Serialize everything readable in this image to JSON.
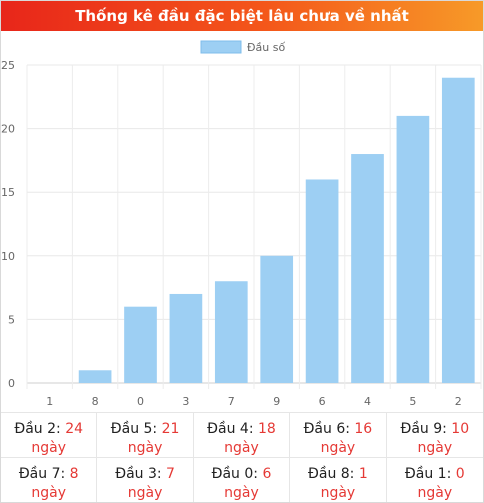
{
  "header": {
    "title": "Thống kê đầu đặc biệt lâu chưa về nhất"
  },
  "colors": {
    "bar": "#9dcff3",
    "bar_border": "#7fbdeb",
    "accent": "#e53935"
  },
  "chart_data": {
    "type": "bar",
    "categories": [
      "1",
      "8",
      "0",
      "3",
      "7",
      "9",
      "6",
      "4",
      "5",
      "2"
    ],
    "series": [
      {
        "name": "Đầu số",
        "values": [
          0,
          1,
          6,
          7,
          8,
          10,
          16,
          18,
          21,
          24
        ]
      }
    ],
    "ylim": [
      0,
      25
    ],
    "yticks": [
      0,
      5,
      10,
      15,
      20,
      25
    ],
    "grid": true,
    "legend": "top-center"
  },
  "stats": [
    {
      "label": "Đầu 2:",
      "value": "24",
      "unit": "ngày"
    },
    {
      "label": "Đầu 5:",
      "value": "21",
      "unit": "ngày"
    },
    {
      "label": "Đầu 4:",
      "value": "18",
      "unit": "ngày"
    },
    {
      "label": "Đầu 6:",
      "value": "16",
      "unit": "ngày"
    },
    {
      "label": "Đầu 9:",
      "value": "10",
      "unit": "ngày"
    },
    {
      "label": "Đầu 7:",
      "value": "8",
      "unit": "ngày"
    },
    {
      "label": "Đầu 3:",
      "value": "7",
      "unit": "ngày"
    },
    {
      "label": "Đầu 0:",
      "value": "6",
      "unit": "ngày"
    },
    {
      "label": "Đầu 8:",
      "value": "1",
      "unit": "ngày"
    },
    {
      "label": "Đầu 1:",
      "value": "0",
      "unit": "ngày"
    }
  ]
}
